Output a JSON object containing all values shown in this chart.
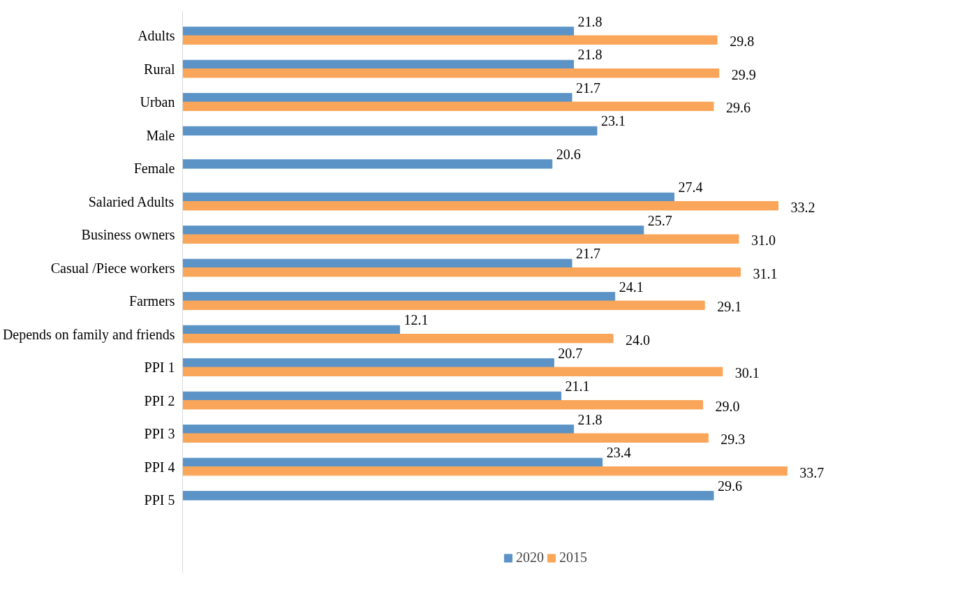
{
  "chart_data": {
    "type": "bar",
    "orientation": "horizontal",
    "categories": [
      "Adults",
      "Rural",
      "Urban",
      "Male",
      "Female",
      "Salaried Adults",
      "Business owners",
      "Casual /Piece workers",
      "Farmers",
      "Depends on family and friends",
      "PPI 1",
      "PPI 2",
      "PPI 3",
      "PPI 4",
      "PPI 5"
    ],
    "series": [
      {
        "name": "2020",
        "color": "#5b93c7",
        "values": [
          21.8,
          21.8,
          21.7,
          23.1,
          20.6,
          27.4,
          25.7,
          21.7,
          24.1,
          12.1,
          20.7,
          21.1,
          21.8,
          23.4,
          29.6
        ],
        "value_labels": [
          "21.8",
          "21.8",
          "21.7",
          "23.1",
          "20.6",
          "27.4",
          "25.7",
          "21.7",
          "24.1",
          "12.1",
          "20.7",
          "21.1",
          "21.8",
          "23.4",
          "29.6"
        ]
      },
      {
        "name": "2015",
        "color": "#f9a65a",
        "values": [
          29.8,
          29.9,
          29.6,
          null,
          null,
          33.2,
          31.0,
          31.1,
          29.1,
          24.0,
          30.1,
          29.0,
          29.3,
          33.7,
          null
        ],
        "value_labels": [
          "29.8",
          "29.9",
          "29.6",
          null,
          null,
          "33.2",
          "31.0",
          "31.1",
          "29.1",
          "24.0",
          "30.1",
          "29.0",
          "29.3",
          "33.7",
          null
        ]
      }
    ],
    "legend": "bottom",
    "tick_labels": "y"
  }
}
